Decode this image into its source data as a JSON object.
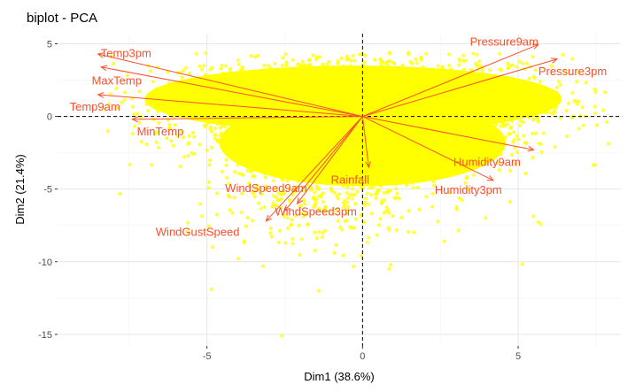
{
  "chart_data": {
    "type": "scatter",
    "title": "biplot - PCA",
    "xlabel": "Dim1 (38.6%)",
    "ylabel": "Dim2 (21.4%)",
    "xlim": [
      -9.8,
      8.3
    ],
    "ylim": [
      -15.8,
      5.7
    ],
    "x_ticks": [
      -5,
      0,
      5
    ],
    "y_ticks": [
      5,
      0,
      -5,
      -10,
      -15
    ],
    "x_tick_labels": [
      "-5",
      "0",
      "5"
    ],
    "y_tick_labels": [
      "5",
      "0",
      "-5",
      "-10",
      "-15"
    ],
    "grid": true,
    "reference_lines": {
      "x": 0,
      "y": 0,
      "style": "dashed"
    },
    "point_color": "#FFFF00",
    "arrow_color": "#FC4E2A",
    "variables": [
      {
        "name": "Pressure9am",
        "x": 5.65,
        "y": 4.95,
        "label_x": 4.55,
        "label_y": 5.1
      },
      {
        "name": "Pressure3pm",
        "x": 6.25,
        "y": 3.95,
        "label_x": 6.75,
        "label_y": 3.05
      },
      {
        "name": "Temp3pm",
        "x": -8.5,
        "y": 4.3,
        "label_x": -7.6,
        "label_y": 4.3
      },
      {
        "name": "MaxTemp",
        "x": -8.4,
        "y": 3.4,
        "label_x": -7.9,
        "label_y": 2.4
      },
      {
        "name": "Temp9am",
        "x": -8.5,
        "y": 1.5,
        "label_x": -8.6,
        "label_y": 0.6
      },
      {
        "name": "MinTemp",
        "x": -7.4,
        "y": -0.2,
        "label_x": -6.5,
        "label_y": -1.1
      },
      {
        "name": "Humidity9am",
        "x": 5.5,
        "y": -2.3,
        "label_x": 4.0,
        "label_y": -3.2
      },
      {
        "name": "Humidity3pm",
        "x": 4.2,
        "y": -4.4,
        "label_x": 3.4,
        "label_y": -5.1
      },
      {
        "name": "Rainfall",
        "x": 0.2,
        "y": -3.5,
        "label_x": -0.4,
        "label_y": -4.4
      },
      {
        "name": "WindSpeed9am",
        "x": -2.5,
        "y": -6.5,
        "label_x": -3.1,
        "label_y": -5.0
      },
      {
        "name": "WindSpeed3pm",
        "x": -2.1,
        "y": -6.0,
        "label_x": -1.5,
        "label_y": -6.6
      },
      {
        "name": "WindGustSpeed",
        "x": -3.1,
        "y": -7.2,
        "label_x": -5.3,
        "label_y": -8.0
      }
    ]
  }
}
